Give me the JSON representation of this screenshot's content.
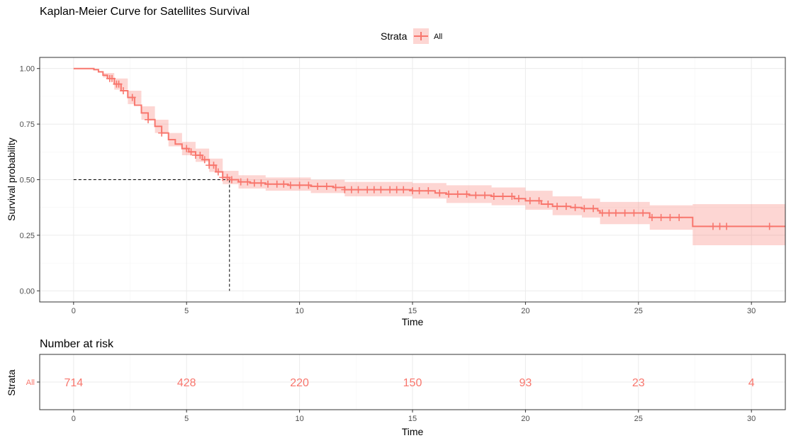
{
  "colors": {
    "series": "#F8766D",
    "ribbon": "#F8766D",
    "panel_border": "#333333",
    "grid_major": "#EBEBEB",
    "grid_minor": "#F5F5F5",
    "median_line": "#000000"
  },
  "chart_data": [
    {
      "type": "line",
      "subtype": "kaplan-meier",
      "title": "Kaplan-Meier Curve for Satellites Survival",
      "xlabel": "Time",
      "ylabel": "Survival probability",
      "xlim": [
        -1.5,
        31.5
      ],
      "ylim": [
        -0.05,
        1.05
      ],
      "x_ticks": [
        0,
        5,
        10,
        15,
        20,
        25,
        30
      ],
      "x_tick_labels": [
        "0",
        "5",
        "10",
        "15",
        "20",
        "25",
        "30"
      ],
      "y_ticks": [
        0,
        0.25,
        0.5,
        0.75,
        1.0
      ],
      "y_tick_labels": [
        "0.00",
        "0.25",
        "0.50",
        "0.75",
        "1.00"
      ],
      "grid": true,
      "legend": {
        "title": "Strata",
        "position": "top",
        "entries": [
          "All"
        ]
      },
      "median": {
        "time": 6.9,
        "survival": 0.5
      },
      "series": [
        {
          "name": "All",
          "curve": [
            [
              0,
              1.0
            ],
            [
              0.4,
              1.0
            ],
            [
              0.7,
              1.0
            ],
            [
              0.9,
              0.995
            ],
            [
              1.1,
              0.985
            ],
            [
              1.3,
              0.97
            ],
            [
              1.5,
              0.955
            ],
            [
              1.8,
              0.93
            ],
            [
              2.1,
              0.9
            ],
            [
              2.4,
              0.87
            ],
            [
              2.7,
              0.835
            ],
            [
              3.0,
              0.8
            ],
            [
              3.3,
              0.77
            ],
            [
              3.6,
              0.74
            ],
            [
              3.9,
              0.71
            ],
            [
              4.2,
              0.68
            ],
            [
              4.5,
              0.66
            ],
            [
              4.8,
              0.64
            ],
            [
              5.1,
              0.625
            ],
            [
              5.4,
              0.61
            ],
            [
              5.7,
              0.59
            ],
            [
              6.0,
              0.565
            ],
            [
              6.3,
              0.535
            ],
            [
              6.6,
              0.51
            ],
            [
              6.9,
              0.5
            ],
            [
              7.3,
              0.49
            ],
            [
              7.8,
              0.485
            ],
            [
              8.5,
              0.48
            ],
            [
              9.5,
              0.475
            ],
            [
              10.5,
              0.47
            ],
            [
              11.5,
              0.465
            ],
            [
              12.0,
              0.455
            ],
            [
              13.0,
              0.455
            ],
            [
              14.0,
              0.455
            ],
            [
              15.0,
              0.45
            ],
            [
              16.0,
              0.44
            ],
            [
              16.5,
              0.435
            ],
            [
              17.5,
              0.43
            ],
            [
              18.5,
              0.425
            ],
            [
              19.5,
              0.415
            ],
            [
              20.0,
              0.405
            ],
            [
              20.7,
              0.39
            ],
            [
              21.2,
              0.38
            ],
            [
              22.0,
              0.375
            ],
            [
              22.5,
              0.37
            ],
            [
              23.2,
              0.36
            ],
            [
              23.3,
              0.35
            ],
            [
              24.5,
              0.35
            ],
            [
              25.4,
              0.35
            ],
            [
              25.5,
              0.33
            ],
            [
              27.3,
              0.33
            ],
            [
              27.4,
              0.29
            ],
            [
              28.5,
              0.29
            ],
            [
              31.5,
              0.29
            ]
          ],
          "ci_upper": [
            [
              0,
              1.0
            ],
            [
              0.7,
              1.0
            ],
            [
              1.3,
              0.98
            ],
            [
              1.8,
              0.955
            ],
            [
              2.4,
              0.9
            ],
            [
              3.0,
              0.83
            ],
            [
              3.6,
              0.77
            ],
            [
              4.2,
              0.71
            ],
            [
              4.8,
              0.67
            ],
            [
              5.4,
              0.64
            ],
            [
              6.0,
              0.595
            ],
            [
              6.6,
              0.54
            ],
            [
              7.3,
              0.52
            ],
            [
              8.5,
              0.51
            ],
            [
              10.5,
              0.5
            ],
            [
              12.0,
              0.49
            ],
            [
              15.0,
              0.485
            ],
            [
              16.5,
              0.475
            ],
            [
              18.5,
              0.465
            ],
            [
              20.0,
              0.45
            ],
            [
              21.2,
              0.425
            ],
            [
              22.5,
              0.415
            ],
            [
              23.3,
              0.4
            ],
            [
              25.4,
              0.4
            ],
            [
              25.5,
              0.385
            ],
            [
              27.3,
              0.385
            ],
            [
              27.4,
              0.39
            ],
            [
              31.5,
              0.39
            ]
          ],
          "ci_lower": [
            [
              0,
              1.0
            ],
            [
              0.7,
              1.0
            ],
            [
              1.3,
              0.96
            ],
            [
              1.8,
              0.905
            ],
            [
              2.4,
              0.84
            ],
            [
              3.0,
              0.77
            ],
            [
              3.6,
              0.71
            ],
            [
              4.2,
              0.65
            ],
            [
              4.8,
              0.61
            ],
            [
              5.4,
              0.58
            ],
            [
              6.0,
              0.535
            ],
            [
              6.6,
              0.48
            ],
            [
              7.3,
              0.46
            ],
            [
              8.5,
              0.45
            ],
            [
              10.5,
              0.44
            ],
            [
              12.0,
              0.425
            ],
            [
              15.0,
              0.415
            ],
            [
              16.5,
              0.395
            ],
            [
              18.5,
              0.385
            ],
            [
              20.0,
              0.365
            ],
            [
              21.2,
              0.34
            ],
            [
              22.5,
              0.33
            ],
            [
              23.3,
              0.3
            ],
            [
              25.4,
              0.3
            ],
            [
              25.5,
              0.275
            ],
            [
              27.3,
              0.275
            ],
            [
              27.4,
              0.205
            ],
            [
              31.5,
              0.205
            ]
          ],
          "censor_times": [
            1.6,
            1.7,
            1.9,
            2.0,
            2.2,
            2.6,
            3.3,
            3.9,
            5.0,
            5.2,
            5.4,
            5.6,
            5.8,
            6.0,
            6.2,
            6.4,
            6.6,
            6.8,
            7.0,
            7.4,
            7.7,
            8.0,
            8.3,
            8.6,
            9.0,
            9.3,
            9.6,
            10.0,
            10.4,
            10.8,
            11.2,
            11.6,
            12.0,
            12.3,
            12.6,
            13.0,
            13.3,
            13.6,
            14.0,
            14.3,
            14.6,
            15.0,
            15.3,
            15.7,
            16.2,
            16.6,
            17.0,
            17.4,
            17.8,
            18.2,
            18.6,
            19.0,
            19.4,
            19.7,
            20.2,
            20.6,
            21.0,
            21.4,
            21.8,
            22.2,
            22.6,
            23.0,
            23.4,
            23.7,
            24.0,
            24.4,
            24.8,
            25.2,
            25.6,
            26.0,
            26.4,
            26.8,
            28.3,
            28.6,
            28.9,
            30.8
          ]
        }
      ]
    },
    {
      "type": "table",
      "title": "Number at risk",
      "xlabel": "Time",
      "ylabel": "Strata",
      "xlim": [
        -1.5,
        31.5
      ],
      "x_ticks": [
        0,
        5,
        10,
        15,
        20,
        25,
        30
      ],
      "x_tick_labels": [
        "0",
        "5",
        "10",
        "15",
        "20",
        "25",
        "30"
      ],
      "rows": [
        {
          "name": "All",
          "times": [
            0,
            5,
            10,
            15,
            20,
            25,
            30
          ],
          "values": [
            714,
            428,
            220,
            150,
            93,
            23,
            4
          ]
        }
      ]
    }
  ]
}
